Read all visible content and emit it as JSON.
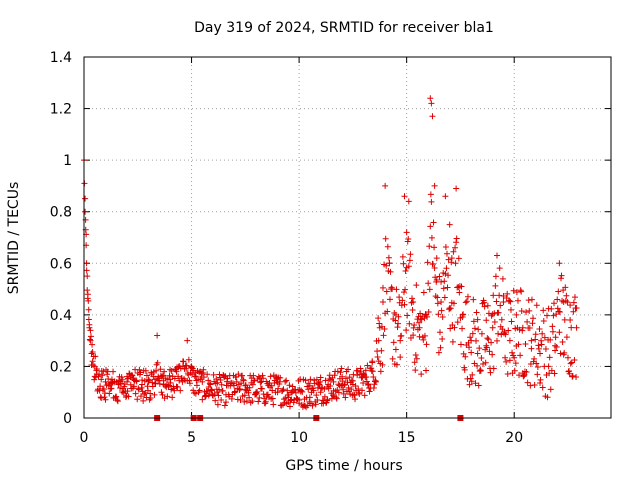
{
  "colors": {
    "series": "#dd0000",
    "axis": "#000000",
    "grid": "#a0a0a0",
    "background": "#ffffff"
  },
  "chart_data": {
    "type": "scatter",
    "title": "Day 319 of 2024, SRMTID for receiver bla1",
    "xlabel": "GPS time / hours",
    "ylabel": "SRMTID / TECUs",
    "xlim": [
      0,
      24.5
    ],
    "ylim": [
      0,
      1.4
    ],
    "x_ticks": [
      0,
      5,
      10,
      15,
      20
    ],
    "x_tick_labels": [
      "0",
      "5",
      "10",
      "15",
      "20"
    ],
    "y_ticks": [
      0,
      0.2,
      0.4,
      0.6,
      0.8,
      1,
      1.2,
      1.4
    ],
    "y_tick_labels": [
      "0",
      "0.2",
      "0.4",
      "0.6",
      "0.8",
      "1",
      "1.2",
      "1.4"
    ],
    "grid": true,
    "marker": "plus",
    "series": [
      {
        "name": "SRMTID bla1",
        "points": [
          [
            0.0,
            1.0
          ],
          [
            0.02,
            0.91
          ],
          [
            0.05,
            0.8
          ],
          [
            0.08,
            0.73
          ],
          [
            0.1,
            0.67
          ],
          [
            0.12,
            0.6
          ],
          [
            0.15,
            0.55
          ],
          [
            0.18,
            0.48
          ],
          [
            0.22,
            0.42
          ],
          [
            0.25,
            0.35
          ],
          [
            0.3,
            0.3
          ],
          [
            0.35,
            0.25
          ],
          [
            0.4,
            0.22
          ],
          [
            0.5,
            0.2
          ],
          [
            0.6,
            0.17
          ],
          [
            0.8,
            0.15
          ],
          [
            1.0,
            0.14
          ],
          [
            1.3,
            0.15
          ],
          [
            1.6,
            0.13
          ],
          [
            2.0,
            0.14
          ],
          [
            2.3,
            0.15
          ],
          [
            2.7,
            0.13
          ],
          [
            3.0,
            0.14
          ],
          [
            3.3,
            0.15
          ],
          [
            3.4,
            0.32
          ],
          [
            3.7,
            0.13
          ],
          [
            4.0,
            0.15
          ],
          [
            4.3,
            0.18
          ],
          [
            4.6,
            0.22
          ],
          [
            4.8,
            0.3
          ],
          [
            5.0,
            0.2
          ],
          [
            5.2,
            0.16
          ],
          [
            5.5,
            0.14
          ],
          [
            5.8,
            0.12
          ],
          [
            6.2,
            0.1
          ],
          [
            6.6,
            0.09
          ],
          [
            7.0,
            0.1
          ],
          [
            7.5,
            0.11
          ],
          [
            8.0,
            0.1
          ],
          [
            8.5,
            0.09
          ],
          [
            9.0,
            0.1
          ],
          [
            9.5,
            0.08
          ],
          [
            10.0,
            0.07
          ],
          [
            10.5,
            0.08
          ],
          [
            11.0,
            0.1
          ],
          [
            11.3,
            0.12
          ],
          [
            11.6,
            0.14
          ],
          [
            12.0,
            0.16
          ],
          [
            12.5,
            0.13
          ],
          [
            13.0,
            0.17
          ],
          [
            13.4,
            0.22
          ],
          [
            13.7,
            0.3
          ],
          [
            13.9,
            0.45
          ],
          [
            14.0,
            0.9
          ],
          [
            14.2,
            0.6
          ],
          [
            14.5,
            0.4
          ],
          [
            14.7,
            0.3
          ],
          [
            14.9,
            0.86
          ],
          [
            15.0,
            0.72
          ],
          [
            15.1,
            0.84
          ],
          [
            15.3,
            0.45
          ],
          [
            15.6,
            0.35
          ],
          [
            15.9,
            0.4
          ],
          [
            16.1,
            1.24
          ],
          [
            16.15,
            1.22
          ],
          [
            16.2,
            1.17
          ],
          [
            16.3,
            0.9
          ],
          [
            16.4,
            0.62
          ],
          [
            16.6,
            0.45
          ],
          [
            16.8,
            0.86
          ],
          [
            17.0,
            0.75
          ],
          [
            17.1,
            0.62
          ],
          [
            17.3,
            0.89
          ],
          [
            17.6,
            0.4
          ],
          [
            18.0,
            0.3
          ],
          [
            18.3,
            0.25
          ],
          [
            18.7,
            0.28
          ],
          [
            19.0,
            0.35
          ],
          [
            19.2,
            0.63
          ],
          [
            19.5,
            0.45
          ],
          [
            19.8,
            0.3
          ],
          [
            20.1,
            0.4
          ],
          [
            20.4,
            0.35
          ],
          [
            20.8,
            0.3
          ],
          [
            21.2,
            0.25
          ],
          [
            21.6,
            0.2
          ],
          [
            21.9,
            0.28
          ],
          [
            22.1,
            0.6
          ],
          [
            22.3,
            0.45
          ],
          [
            22.6,
            0.38
          ],
          [
            22.9,
            0.35
          ]
        ]
      }
    ],
    "markers_on_axis": [
      3.4,
      5.1,
      5.4,
      10.8,
      17.5
    ]
  }
}
